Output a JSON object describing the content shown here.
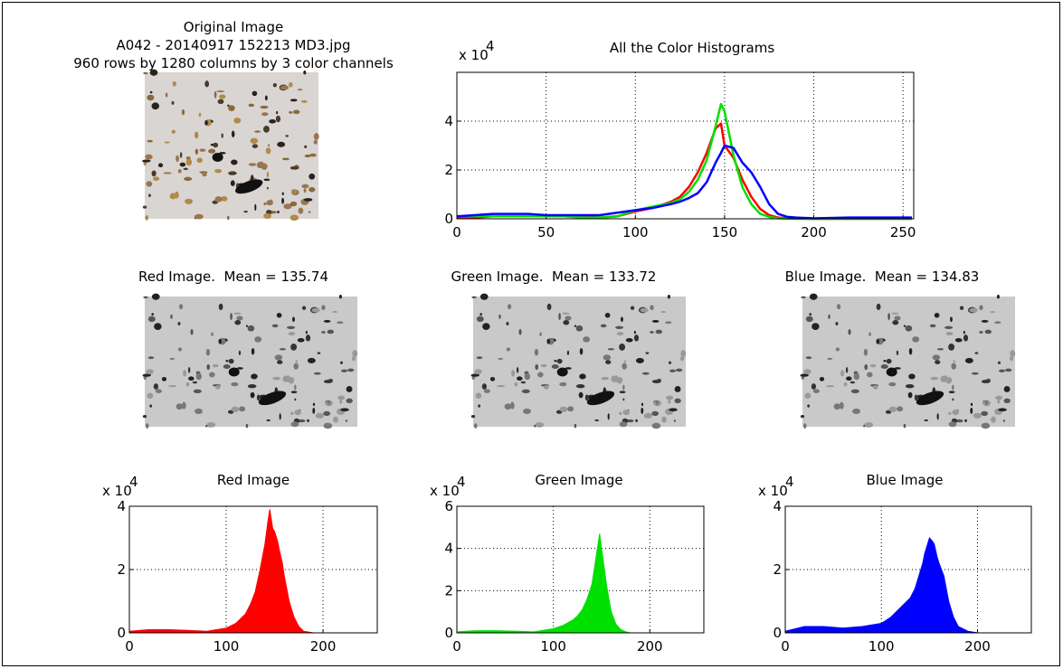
{
  "images": [
    {
      "title": [
        "Original Image",
        "A042 - 20140917 152213 MD3.jpg",
        "960 rows by 1280 columns by 3 color channels"
      ]
    },
    {
      "title": "Red Image.  Mean = 135.74"
    },
    {
      "title": "Green Image.  Mean = 133.72"
    },
    {
      "title": "Blue Image.  Mean = 134.83"
    }
  ],
  "chart_data": [
    {
      "type": "line",
      "title": "All the Color Histograms",
      "y_scale_label": "x 10",
      "y_scale_exponent": "4",
      "x": [
        0,
        10,
        20,
        30,
        40,
        50,
        60,
        70,
        80,
        90,
        100,
        110,
        120,
        125,
        130,
        135,
        140,
        145,
        148,
        150,
        155,
        160,
        165,
        170,
        175,
        180,
        185,
        190,
        200,
        220,
        240,
        255
      ],
      "series": [
        {
          "color": "#ff0000",
          "values": [
            0.05,
            0.05,
            0.1,
            0.1,
            0.1,
            0.1,
            0.1,
            0.1,
            0.05,
            0.1,
            0.3,
            0.45,
            0.7,
            0.9,
            1.3,
            1.9,
            2.7,
            3.7,
            3.9,
            3.0,
            2.5,
            1.6,
            0.9,
            0.4,
            0.15,
            0.05,
            0.02,
            0.01,
            0,
            0,
            0,
            0
          ]
        },
        {
          "color": "#00e000",
          "values": [
            0.1,
            0.1,
            0.1,
            0.1,
            0.1,
            0.1,
            0.1,
            0.05,
            0.05,
            0.1,
            0.35,
            0.5,
            0.65,
            0.8,
            1.1,
            1.6,
            2.4,
            3.8,
            4.7,
            4.4,
            2.6,
            1.3,
            0.6,
            0.2,
            0.08,
            0.02,
            0.01,
            0,
            0,
            0,
            0,
            0
          ]
        },
        {
          "color": "#0000ff",
          "values": [
            0.1,
            0.15,
            0.2,
            0.2,
            0.2,
            0.15,
            0.15,
            0.15,
            0.15,
            0.25,
            0.35,
            0.45,
            0.6,
            0.7,
            0.85,
            1.05,
            1.5,
            2.3,
            2.7,
            3.0,
            2.9,
            2.3,
            1.9,
            1.3,
            0.6,
            0.2,
            0.08,
            0.05,
            0.02,
            0.05,
            0.05,
            0.05
          ]
        }
      ],
      "xlim": [
        0,
        256
      ],
      "xticks": [
        0,
        50,
        100,
        150,
        200,
        250
      ],
      "ylim": [
        0,
        6
      ],
      "yticks": [
        0,
        2,
        4
      ],
      "grid": true
    },
    {
      "type": "area",
      "title": "Red Image",
      "y_scale_label": "x 10",
      "y_scale_exponent": "4",
      "color": "#ff0000",
      "x": [
        0,
        20,
        40,
        60,
        80,
        100,
        110,
        120,
        125,
        130,
        135,
        140,
        143,
        145,
        148,
        150,
        153,
        155,
        158,
        160,
        165,
        170,
        175,
        180,
        190,
        200,
        256
      ],
      "values": [
        0.05,
        0.1,
        0.1,
        0.08,
        0.05,
        0.15,
        0.3,
        0.6,
        0.9,
        1.3,
        2.0,
        2.8,
        3.5,
        3.9,
        3.3,
        3.2,
        2.9,
        2.6,
        2.2,
        1.8,
        1.0,
        0.5,
        0.2,
        0.05,
        0,
        0,
        0
      ],
      "xlim": [
        0,
        256
      ],
      "xticks": [
        0,
        100,
        200
      ],
      "ylim": [
        0,
        4
      ],
      "yticks": [
        0,
        2,
        4
      ],
      "grid": true
    },
    {
      "type": "area",
      "title": "Green Image",
      "y_scale_label": "x 10",
      "y_scale_exponent": "4",
      "color": "#00e000",
      "x": [
        0,
        20,
        40,
        60,
        80,
        100,
        110,
        120,
        125,
        130,
        135,
        140,
        143,
        145,
        148,
        150,
        153,
        155,
        158,
        160,
        165,
        170,
        175,
        180,
        190,
        200,
        256
      ],
      "values": [
        0.05,
        0.1,
        0.1,
        0.08,
        0.05,
        0.2,
        0.35,
        0.6,
        0.8,
        1.1,
        1.6,
        2.3,
        3.2,
        3.8,
        4.7,
        4.0,
        3.0,
        2.3,
        1.5,
        1.0,
        0.4,
        0.15,
        0.05,
        0,
        0,
        0,
        0
      ],
      "xlim": [
        0,
        256
      ],
      "xticks": [
        0,
        100,
        200
      ],
      "ylim": [
        0,
        6
      ],
      "yticks": [
        0,
        2,
        4,
        6
      ],
      "grid": true
    },
    {
      "type": "area",
      "title": "Blue Image",
      "y_scale_label": "x 10",
      "y_scale_exponent": "4",
      "color": "#0000ff",
      "x": [
        0,
        20,
        40,
        60,
        80,
        100,
        110,
        120,
        125,
        130,
        135,
        140,
        143,
        145,
        148,
        150,
        153,
        155,
        158,
        160,
        165,
        170,
        175,
        180,
        190,
        200,
        256
      ],
      "values": [
        0.05,
        0.2,
        0.2,
        0.15,
        0.2,
        0.3,
        0.5,
        0.8,
        0.95,
        1.1,
        1.4,
        1.9,
        2.2,
        2.5,
        2.8,
        3.0,
        2.9,
        2.8,
        2.4,
        2.2,
        1.8,
        1.0,
        0.5,
        0.2,
        0.05,
        0,
        0
      ],
      "xlim": [
        0,
        256
      ],
      "xticks": [
        0,
        100,
        200
      ],
      "ylim": [
        0,
        4
      ],
      "yticks": [
        0,
        2,
        4
      ],
      "grid": true
    }
  ]
}
